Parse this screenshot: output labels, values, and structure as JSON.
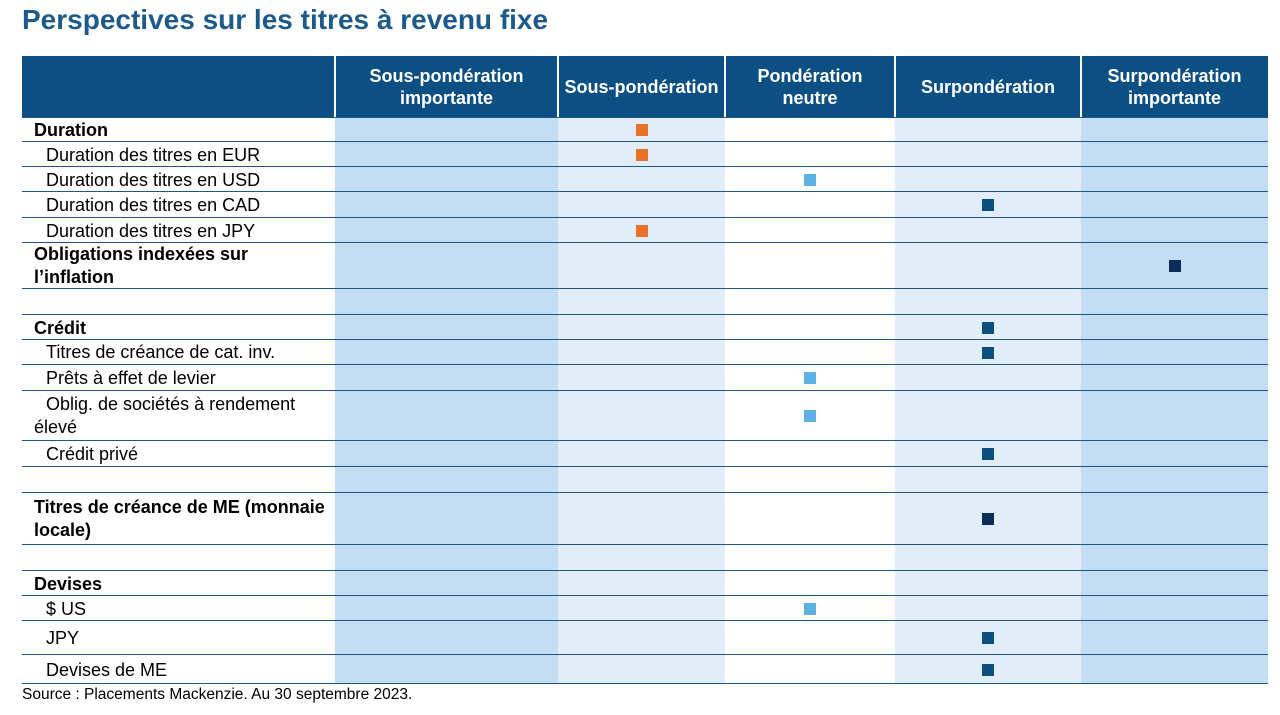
{
  "title": "Perspectives sur les titres à revenu fixe",
  "source": "Source : Placements Mackenzie. Au 30 septembre 2023.",
  "colors": {
    "header_bg": "#0c4f82",
    "col_dark": "#c3ddf2",
    "col_light": "#e1eef9",
    "col_white": "#ffffff",
    "underweight": "#e9722a",
    "neutral": "#5cb0e2",
    "overweight": "#0c4f7e",
    "overweight_strong": "#0c2d57"
  },
  "chart_data": {
    "type": "table",
    "title": "Perspectives sur les titres à revenu fixe",
    "columns": [
      "Sous-pondération importante",
      "Sous-pondération",
      "Pondération neutre",
      "Surpondération",
      "Surpondération importante"
    ],
    "rows": [
      {
        "label": "Duration",
        "bold": true,
        "indent": false,
        "position": 1,
        "color": "underweight"
      },
      {
        "label": "Duration des titres en EUR",
        "bold": false,
        "indent": true,
        "position": 1,
        "color": "underweight"
      },
      {
        "label": "Duration des titres en USD",
        "bold": false,
        "indent": true,
        "position": 2,
        "color": "neutral"
      },
      {
        "label": "Duration des titres en CAD",
        "bold": false,
        "indent": true,
        "position": 3,
        "color": "overweight"
      },
      {
        "label": "Duration des titres en JPY",
        "bold": false,
        "indent": true,
        "position": 1,
        "color": "underweight"
      },
      {
        "label": "Obligations indexées sur l’inflation",
        "bold": true,
        "indent": false,
        "position": 4,
        "color": "overweight_strong"
      },
      {
        "spacer": true
      },
      {
        "label": "Crédit",
        "bold": true,
        "indent": false,
        "position": 3,
        "color": "overweight"
      },
      {
        "label": "Titres de créance de cat. inv.",
        "bold": false,
        "indent": true,
        "position": 3,
        "color": "overweight"
      },
      {
        "label": "Prêts à effet de levier",
        "bold": false,
        "indent": true,
        "position": 2,
        "color": "neutral"
      },
      {
        "label": "Oblig. de sociétés à rendement élevé",
        "bold": false,
        "indent": true,
        "position": 2,
        "color": "neutral"
      },
      {
        "label": "Crédit privé",
        "bold": false,
        "indent": true,
        "position": 3,
        "color": "overweight"
      },
      {
        "spacer": true
      },
      {
        "label": "Titres de créance de ME (monnaie locale)",
        "bold": true,
        "indent": false,
        "position": 3,
        "color": "overweight_strong"
      },
      {
        "spacer": true
      },
      {
        "label": "Devises",
        "bold": true,
        "indent": false,
        "position": null,
        "color": null
      },
      {
        "label": "$ US",
        "bold": false,
        "indent": true,
        "position": 2,
        "color": "neutral"
      },
      {
        "label": "JPY",
        "bold": false,
        "indent": true,
        "position": 3,
        "color": "overweight"
      },
      {
        "label": "Devises de ME",
        "bold": false,
        "indent": true,
        "position": 3,
        "color": "overweight"
      }
    ]
  }
}
